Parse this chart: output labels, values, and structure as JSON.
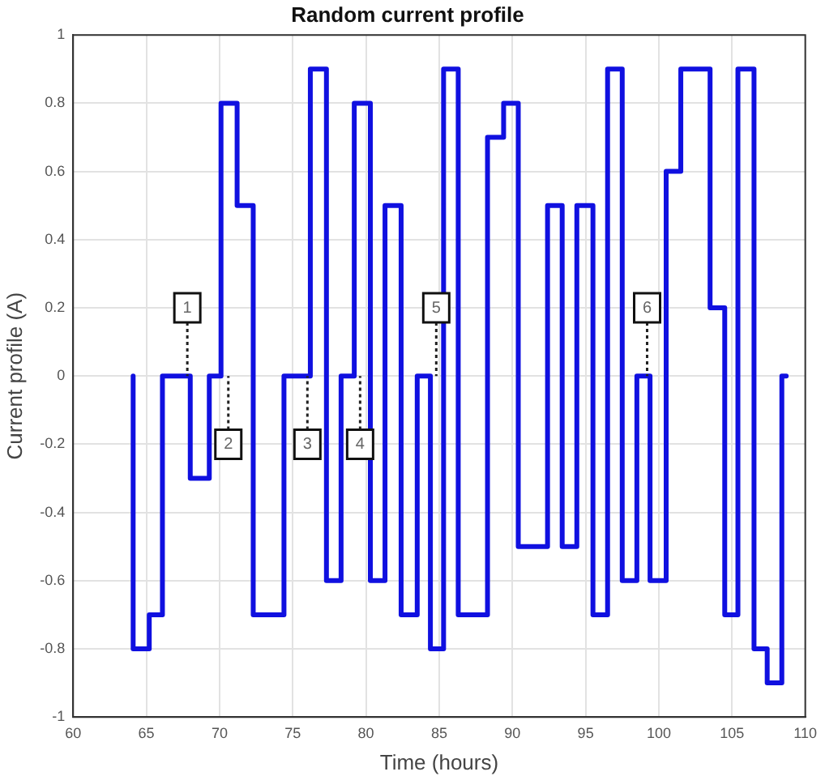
{
  "chart_data": {
    "type": "step",
    "title": "Random current profile",
    "xlabel": "Time (hours)",
    "ylabel": "Current profile (A)",
    "x": [
      64.1,
      64.1,
      65.2,
      66.1,
      68.0,
      69.3,
      70.1,
      71.2,
      72.3,
      74.4,
      76.2,
      77.3,
      78.3,
      79.2,
      80.3,
      81.3,
      82.4,
      83.5,
      84.4,
      85.3,
      86.3,
      88.3,
      89.4,
      90.4,
      92.4,
      93.4,
      94.4,
      95.5,
      96.5,
      97.5,
      98.5,
      99.4,
      100.5,
      101.5,
      103.5,
      104.5,
      105.4,
      106.5,
      107.4,
      108.4,
      108.7
    ],
    "series": [
      {
        "color": "#1010e0",
        "values": [
          0,
          -0.8,
          -0.7,
          0,
          -0.3,
          0,
          0.8,
          0.5,
          -0.7,
          0,
          0.9,
          -0.6,
          0,
          0.8,
          -0.6,
          0.5,
          -0.7,
          0,
          -0.8,
          0.9,
          -0.7,
          0.7,
          0.8,
          -0.5,
          0.5,
          -0.5,
          0.5,
          -0.7,
          0.9,
          -0.6,
          0,
          -0.6,
          0.6,
          0.9,
          0.2,
          -0.7,
          0.9,
          -0.8,
          -0.9,
          0,
          0
        ]
      }
    ],
    "xlim": [
      60,
      110
    ],
    "xticks": [
      60,
      65,
      70,
      75,
      80,
      85,
      90,
      95,
      100,
      105,
      110
    ],
    "ylim": [
      -1,
      1
    ],
    "yticks": [
      -1,
      -0.8,
      -0.6,
      -0.4,
      -0.2,
      0,
      0.2,
      0.4,
      0.6,
      0.8,
      1
    ],
    "grid": true,
    "line_style": "solid",
    "marker": "none",
    "annotations": [
      {
        "text": "1",
        "x": 67.8,
        "y": 0.2
      },
      {
        "text": "2",
        "x": 70.6,
        "y": -0.2
      },
      {
        "text": "3",
        "x": 76.0,
        "y": -0.2
      },
      {
        "text": "4",
        "x": 79.6,
        "y": -0.2
      },
      {
        "text": "5",
        "x": 84.8,
        "y": 0.2
      },
      {
        "text": "6",
        "x": 99.2,
        "y": 0.2
      }
    ]
  }
}
